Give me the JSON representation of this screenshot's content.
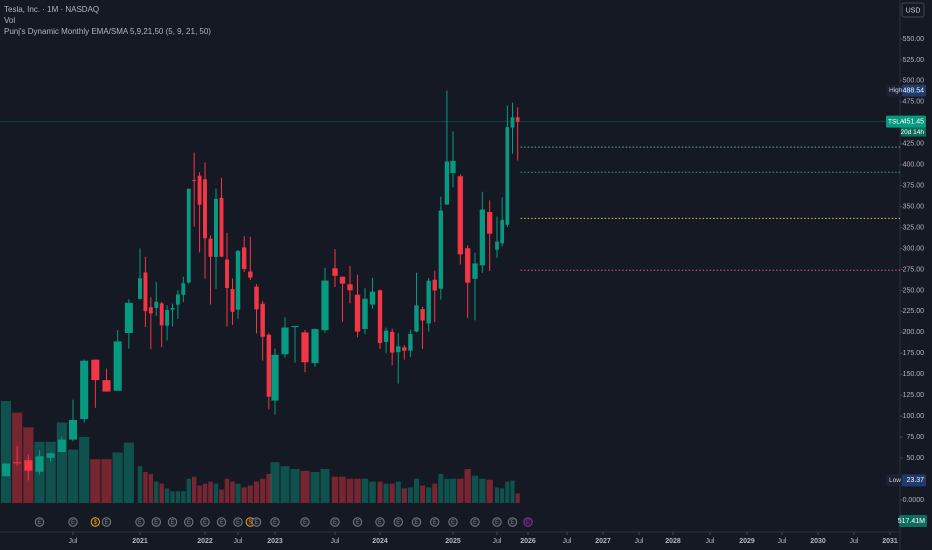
{
  "chart_data": {
    "type": "candlestick",
    "title": "Tesla, Inc. · 1M · NASDAQ",
    "indicators": [
      "Vol",
      "Punj's Dynamic Monthly EMA/SMA 5,9,21,50 (5, 9, 21, 50)"
    ],
    "currency": "USD",
    "up_color": "#089981",
    "down_color": "#f23645",
    "x": [
      2020,
      2020.0833,
      2020.1667,
      2020.25,
      2020.3333,
      2020.4167,
      2020.5,
      2020.5833,
      2020.6667,
      2020.75,
      2020.8333,
      2020.9167,
      2021,
      2021.0833,
      2021.1667,
      2021.25,
      2021.3333,
      2021.4167,
      2021.5,
      2021.5833,
      2021.6667,
      2021.75,
      2021.8333,
      2021.9167,
      2022,
      2022.0833,
      2022.1667,
      2022.25,
      2022.3333,
      2022.4167,
      2022.5,
      2022.5833,
      2022.6667,
      2022.75,
      2022.8333,
      2022.9167,
      2023,
      2023.0833,
      2023.1667,
      2023.25,
      2023.3333,
      2023.4167,
      2023.5,
      2023.5833,
      2023.6667,
      2023.75,
      2023.8333,
      2023.9167,
      2024,
      2024.0833,
      2024.1667,
      2024.25,
      2024.3333,
      2024.4167,
      2024.5,
      2024.5833,
      2024.6667,
      2024.75,
      2024.8333,
      2024.9167,
      2025,
      2025.0833,
      2025.1667,
      2025.25,
      2025.3333,
      2025.4167,
      2025.5,
      2025.5833,
      2025.6667,
      2025.75,
      2025.8333
    ],
    "open": [
      28.3,
      44.9,
      47.4,
      33.6,
      50.3,
      57.2,
      72.0,
      96.6,
      167.4,
      143.0,
      130.3,
      199.2,
      239.8,
      271.4,
      230.0,
      229.0,
      234.6,
      208.0,
      227.0,
      233.0,
      244.7,
      259.5,
      381.7,
      386.9,
      382.6,
      311.7,
      289.9,
      360.4,
      286.9,
      251.7,
      227.0,
      301.3,
      272.6,
      254.5,
      234.1,
      197.1,
      118.5,
      173.9,
      206.2,
      199.9,
      163.2,
      202.6,
      276.5,
      266.3,
      257.3,
      244.8,
      204.0,
      233.1,
      250.1,
      188.5,
      200.5,
      176.2,
      182.0,
      178.1,
      201.0,
      227.7,
      210.6,
      262.7,
      252.0,
      352.4,
      390.1,
      386.2,
      300.3,
      263.8,
      280.0,
      343.5,
      298.5,
      306.2,
      328.2,
      444.3,
      456.6
    ],
    "high": [
      43.5,
      64.6,
      54.2,
      59.3,
      56.5,
      75.2,
      119.7,
      167.5,
      167.5,
      156.8,
      202.6,
      239.6,
      300.1,
      290.1,
      241.8,
      260.3,
      236.3,
      232.2,
      234.3,
      250.2,
      266.3,
      371.7,
      414.5,
      390.9,
      402.7,
      315.9,
      371.6,
      384.3,
      318.5,
      264.2,
      298.3,
      314.7,
      313.8,
      257.5,
      237.4,
      198.9,
      180.7,
      217.7,
      207.8,
      202.7,
      204.5,
      277.0,
      299.3,
      266.5,
      279.0,
      268.9,
      252.8,
      265.1,
      251.3,
      205.6,
      204.5,
      198.9,
      184.8,
      203.2,
      271.0,
      230.2,
      264.9,
      273.5,
      361.9,
      488.54,
      439.7,
      388.4,
      303.9,
      294.9,
      367.7,
      357.5,
      338.0,
      361.0,
      470.8,
      474.1,
      468.4
    ],
    "low": [
      28.1,
      40.8,
      23.37,
      30.2,
      45.5,
      57.2,
      70.1,
      92.2,
      109.9,
      130.0,
      131.4,
      180.4,
      239.1,
      206.3,
      179.8,
      219.6,
      182.3,
      190.4,
      206.8,
      216.0,
      236.0,
      257.7,
      326.2,
      295.4,
      264.0,
      233.3,
      252.0,
      290.0,
      206.9,
      208.7,
      216.2,
      271.8,
      262.5,
      198.6,
      166.2,
      108.2,
      101.8,
      169.9,
      163.9,
      152.4,
      158.8,
      199.4,
      254.1,
      212.4,
      234.6,
      194.1,
      197.9,
      228.2,
      180.1,
      175.0,
      160.5,
      138.8,
      167.4,
      170.5,
      200.0,
      180.1,
      200.7,
      212.1,
      238.9,
      352.0,
      373.0,
      281.0,
      217.0,
      214.3,
      270.8,
      273.2,
      288.8,
      302.2,
      325.6,
      413.0,
      405.0
    ],
    "close": [
      43.4,
      44.5,
      34.9,
      52.1,
      55.7,
      72.0,
      95.4,
      166.1,
      143.0,
      129.3,
      189.2,
      235.2,
      264.5,
      225.2,
      222.6,
      236.5,
      208.4,
      226.6,
      229.1,
      245.2,
      258.5,
      371.3,
      381.6,
      352.3,
      312.2,
      290.1,
      359.2,
      290.3,
      252.8,
      224.5,
      297.1,
      275.6,
      265.3,
      227.5,
      194.7,
      123.2,
      173.2,
      205.7,
      207.5,
      164.3,
      203.9,
      261.8,
      267.4,
      258.1,
      250.2,
      200.8,
      240.1,
      248.5,
      187.3,
      201.9,
      175.8,
      183.3,
      178.1,
      197.9,
      232.1,
      214.1,
      261.6,
      249.9,
      345.2,
      403.8,
      404.6,
      293.0,
      259.2,
      282.2,
      346.5,
      317.7,
      308.3,
      333.9,
      444.7,
      456.6,
      451.45
    ],
    "volume": [
      5430,
      4810,
      4030,
      3260,
      3260,
      4290,
      2840,
      3520,
      2330,
      2330,
      2690,
      3210,
      1960,
      1650,
      1550,
      1140,
      1030,
      780,
      620,
      620,
      620,
      1290,
      1400,
      930,
      1030,
      1140,
      1030,
      720,
      1290,
      1140,
      1030,
      830,
      930,
      1140,
      1290,
      1550,
      2170,
      1960,
      1810,
      1710,
      1650,
      1810,
      1400,
      1400,
      1290,
      1290,
      1290,
      1140,
      1140,
      1030,
      1030,
      1140,
      780,
      830,
      1290,
      930,
      830,
      1030,
      1550,
      1290,
      1290,
      1290,
      1810,
      1450,
      1290,
      1240,
      830,
      780,
      1140,
      1190,
      517.41
    ],
    "last_volume": {
      "value": 517.41,
      "label": "517.41M"
    },
    "high_marker": {
      "label": "High",
      "value": 488.54,
      "value_label": "488.54"
    },
    "low_marker": {
      "label": "Low",
      "value": 23.37,
      "value_label": "23.37"
    },
    "last_price": {
      "symbol": "TSLA",
      "value": 451.45,
      "value_label": "451.45",
      "countdown": "20d 14h"
    },
    "levels": [
      {
        "value": 421,
        "color": "#4db6ac"
      },
      {
        "value": 391,
        "color": "#26a69a"
      },
      {
        "value": 336,
        "color": "#d4c74b"
      },
      {
        "value": 274,
        "color": "#e0588a"
      }
    ],
    "events": [
      {
        "x": 2020.25,
        "label": "E",
        "color": "#787b86"
      },
      {
        "x": 2020.5,
        "label": "E",
        "color": "#787b86"
      },
      {
        "x": 2020.6667,
        "label": "$",
        "color": "#f7a21b"
      },
      {
        "x": 2020.75,
        "label": "E",
        "color": "#787b86"
      },
      {
        "x": 2021,
        "label": "E",
        "color": "#787b86"
      },
      {
        "x": 2021.25,
        "label": "E",
        "color": "#787b86"
      },
      {
        "x": 2021.5,
        "label": "E",
        "color": "#787b86"
      },
      {
        "x": 2021.75,
        "label": "E",
        "color": "#787b86"
      },
      {
        "x": 2022,
        "label": "E",
        "color": "#787b86"
      },
      {
        "x": 2022.25,
        "label": "E",
        "color": "#787b86"
      },
      {
        "x": 2022.5,
        "label": "E",
        "color": "#787b86"
      },
      {
        "x": 2022.6667,
        "label": "S",
        "color": "#f7a21b"
      },
      {
        "x": 2022.75,
        "label": "E",
        "color": "#787b86"
      },
      {
        "x": 2023,
        "label": "E",
        "color": "#787b86"
      },
      {
        "x": 2023.25,
        "label": "E",
        "color": "#787b86"
      },
      {
        "x": 2023.5,
        "label": "E",
        "color": "#787b86"
      },
      {
        "x": 2023.75,
        "label": "E",
        "color": "#787b86"
      },
      {
        "x": 2024,
        "label": "E",
        "color": "#787b86"
      },
      {
        "x": 2024.25,
        "label": "E",
        "color": "#787b86"
      },
      {
        "x": 2024.5,
        "label": "E",
        "color": "#787b86"
      },
      {
        "x": 2024.75,
        "label": "E",
        "color": "#787b86"
      },
      {
        "x": 2025,
        "label": "E",
        "color": "#787b86"
      },
      {
        "x": 2025.25,
        "label": "E",
        "color": "#787b86"
      },
      {
        "x": 2025.5,
        "label": "E",
        "color": "#787b86"
      },
      {
        "x": 2025.75,
        "label": "E",
        "color": "#787b86"
      },
      {
        "x": 2026,
        "label": "E",
        "color": "#9c27b0"
      }
    ],
    "ylim": [
      -12,
      596.5
    ],
    "yticks": [
      {
        "value": 550,
        "label": "550.00"
      },
      {
        "value": 525,
        "label": "525.00"
      },
      {
        "value": 500,
        "label": "500.00"
      },
      {
        "value": 475,
        "label": "475.00"
      },
      {
        "value": 450,
        "label": "450.00"
      },
      {
        "value": 425,
        "label": "425.00"
      },
      {
        "value": 400,
        "label": "400.00"
      },
      {
        "value": 375,
        "label": "375.00"
      },
      {
        "value": 350,
        "label": "350.00"
      },
      {
        "value": 325,
        "label": "325.00"
      },
      {
        "value": 300,
        "label": "300.00"
      },
      {
        "value": 275,
        "label": "275.00"
      },
      {
        "value": 250,
        "label": "250.00"
      },
      {
        "value": 225,
        "label": "225.00"
      },
      {
        "value": 200,
        "label": "200.00"
      },
      {
        "value": 175,
        "label": "175.00"
      },
      {
        "value": 150,
        "label": "150.00"
      },
      {
        "value": 125,
        "label": "125.00"
      },
      {
        "value": 100,
        "label": "100.00"
      },
      {
        "value": 75,
        "label": "75.00"
      },
      {
        "value": 50,
        "label": "50.00"
      },
      {
        "value": 0,
        "label": "0.0000"
      }
    ],
    "xlim": [
      2019.955,
      2031.14
    ],
    "xticks": [
      {
        "value": 2020.5,
        "label": "Jul"
      },
      2021,
      2022,
      {
        "value": 2022.5,
        "label": "Jul"
      },
      2023,
      {
        "value": 2023.5,
        "label": "Jul"
      },
      2024,
      2025,
      {
        "value": 2025.5,
        "label": "Jul"
      },
      2026,
      {
        "value": 2026.5,
        "label": "Jul"
      },
      2027,
      {
        "value": 2027.5,
        "label": "Jul"
      },
      2028,
      {
        "value": 2028.5,
        "label": "Jul"
      },
      2029,
      {
        "value": 2029.5,
        "label": "Jul"
      },
      2030,
      {
        "value": 2030.5,
        "label": "Jul"
      },
      2031
    ]
  }
}
